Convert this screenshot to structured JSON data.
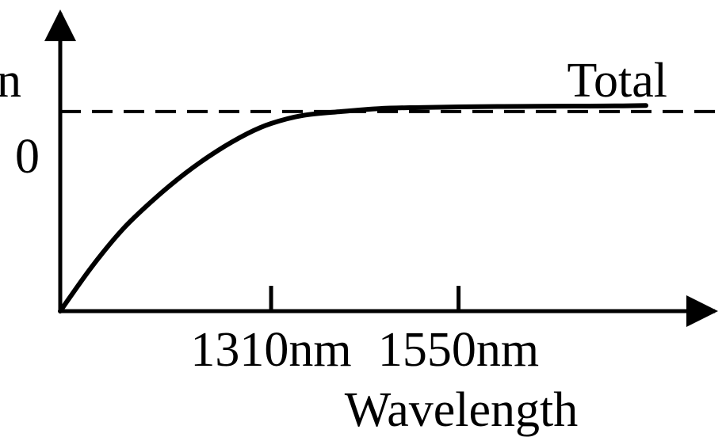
{
  "chart_data": {
    "type": "line",
    "title": "",
    "xlabel": "Wavelength",
    "ylabel": "n",
    "x_ticks": [
      {
        "value": 1310,
        "label": "1310nm"
      },
      {
        "value": 1550,
        "label": "1550nm"
      }
    ],
    "y_ticks": [
      {
        "value": 0,
        "label": "0"
      }
    ],
    "xlim": [
      1040,
      1860
    ],
    "ylim": [
      -1,
      0.4
    ],
    "reference_line": {
      "y": 0,
      "style": "dashed"
    },
    "series": [
      {
        "name": "Total",
        "x": [
          1040,
          1080,
          1120,
          1160,
          1200,
          1240,
          1280,
          1310,
          1350,
          1400,
          1450,
          1500,
          1550,
          1600,
          1650,
          1700,
          1750,
          1790
        ],
        "y": [
          -1.0,
          -0.78,
          -0.59,
          -0.44,
          -0.31,
          -0.2,
          -0.11,
          -0.06,
          -0.02,
          0.0,
          0.015,
          0.02,
          0.023,
          0.025,
          0.026,
          0.027,
          0.028,
          0.03
        ]
      }
    ],
    "grid": false,
    "legend": "none"
  },
  "colors": {
    "ink": "#000000",
    "background": "#ffffff"
  }
}
